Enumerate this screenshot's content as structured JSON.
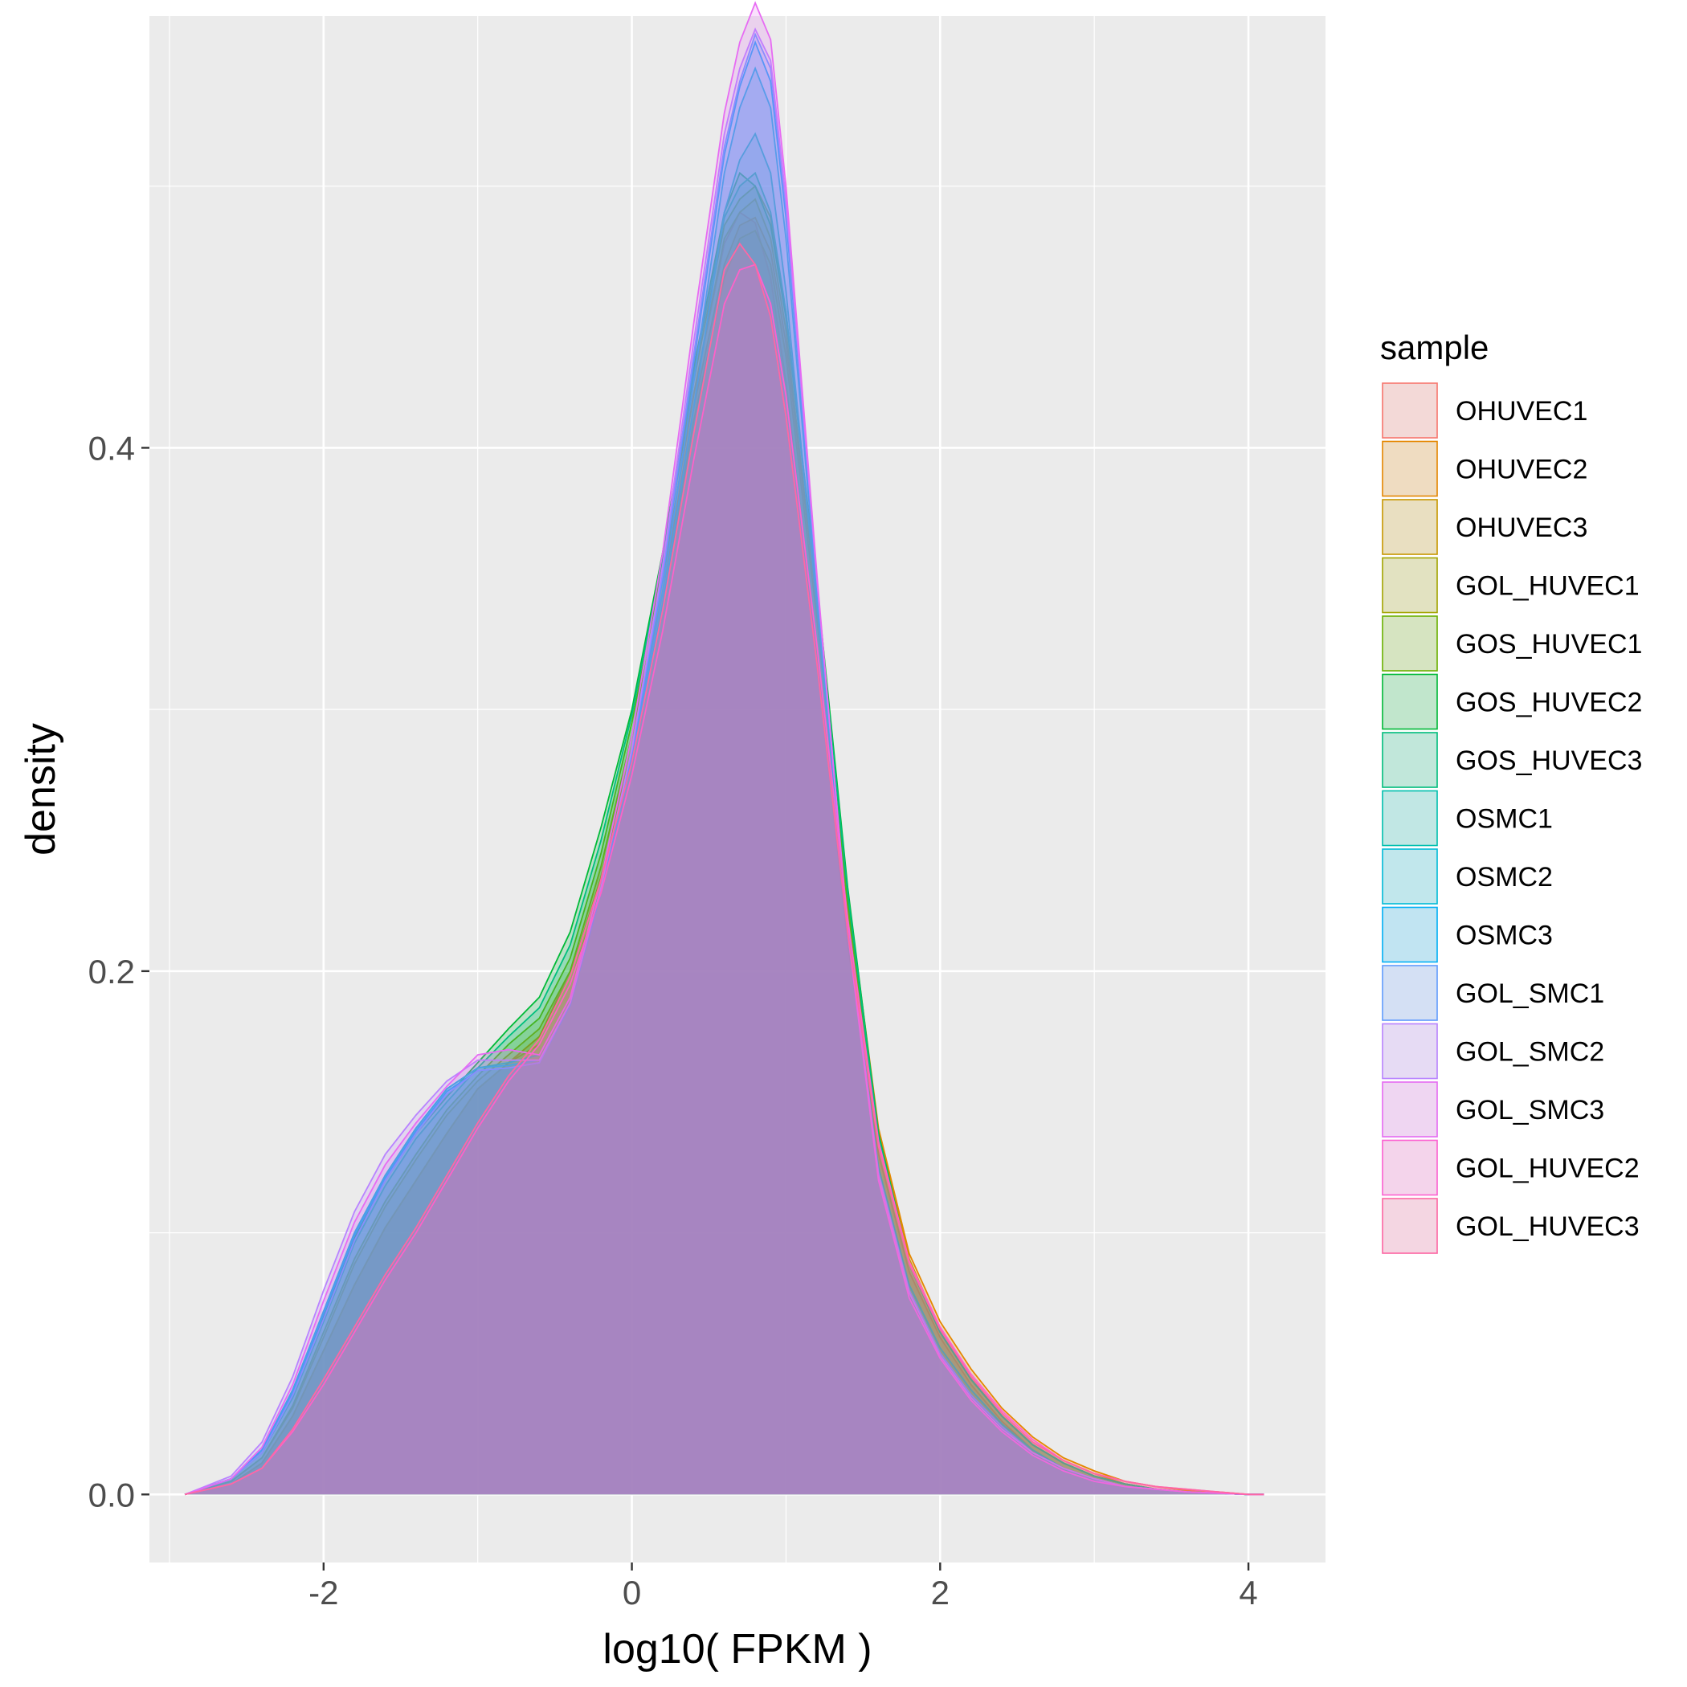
{
  "chart_data": {
    "type": "area",
    "xlabel": "log10( FPKM )",
    "ylabel": "density",
    "xlim": [
      -3.13,
      4.5
    ],
    "ylim": [
      -0.026,
      0.565
    ],
    "x_ticks": [
      -2,
      0,
      2,
      4
    ],
    "x_tick_labels": [
      "-2",
      "0",
      "2",
      "4"
    ],
    "y_ticks": [
      0.0,
      0.2,
      0.4
    ],
    "y_tick_labels": [
      "0.0",
      "0.2",
      "0.4"
    ],
    "grid": true,
    "legend_title": "sample",
    "legend_position": "right",
    "fill_opacity": 0.2,
    "x": [
      -2.9,
      -2.6,
      -2.4,
      -2.2,
      -2.0,
      -1.8,
      -1.6,
      -1.4,
      -1.2,
      -1.0,
      -0.8,
      -0.6,
      -0.4,
      -0.2,
      0.0,
      0.2,
      0.4,
      0.6,
      0.7,
      0.8,
      0.9,
      1.0,
      1.2,
      1.4,
      1.6,
      1.8,
      2.0,
      2.2,
      2.4,
      2.6,
      2.8,
      3.0,
      3.2,
      3.4,
      3.6,
      3.8,
      4.0,
      4.1
    ],
    "series": [
      {
        "name": "OHUVEC1",
        "color": "#F8766D",
        "values": [
          0.0,
          0.004,
          0.012,
          0.03,
          0.055,
          0.08,
          0.102,
          0.12,
          0.138,
          0.155,
          0.165,
          0.175,
          0.2,
          0.24,
          0.29,
          0.35,
          0.42,
          0.478,
          0.49,
          0.486,
          0.465,
          0.425,
          0.32,
          0.21,
          0.13,
          0.085,
          0.06,
          0.042,
          0.028,
          0.017,
          0.01,
          0.006,
          0.003,
          0.002,
          0.001,
          0.0005,
          0.0,
          0.0
        ]
      },
      {
        "name": "OHUVEC2",
        "color": "#E58700",
        "values": [
          0.0,
          0.004,
          0.012,
          0.03,
          0.055,
          0.08,
          0.102,
          0.12,
          0.138,
          0.155,
          0.165,
          0.175,
          0.198,
          0.236,
          0.285,
          0.345,
          0.415,
          0.47,
          0.485,
          0.488,
          0.475,
          0.44,
          0.34,
          0.23,
          0.14,
          0.092,
          0.066,
          0.048,
          0.033,
          0.022,
          0.014,
          0.009,
          0.005,
          0.003,
          0.0015,
          0.001,
          0.0,
          0.0
        ]
      },
      {
        "name": "OHUVEC3",
        "color": "#C99800",
        "values": [
          0.0,
          0.004,
          0.012,
          0.03,
          0.055,
          0.08,
          0.102,
          0.12,
          0.138,
          0.155,
          0.165,
          0.172,
          0.195,
          0.232,
          0.28,
          0.34,
          0.41,
          0.465,
          0.48,
          0.483,
          0.47,
          0.435,
          0.335,
          0.225,
          0.138,
          0.09,
          0.063,
          0.045,
          0.031,
          0.02,
          0.013,
          0.008,
          0.004,
          0.002,
          0.001,
          0.0005,
          0.0,
          0.0
        ]
      },
      {
        "name": "GOL_HUVEC1",
        "color": "#A3A500",
        "values": [
          0.0,
          0.005,
          0.014,
          0.033,
          0.06,
          0.088,
          0.11,
          0.128,
          0.145,
          0.158,
          0.168,
          0.178,
          0.2,
          0.24,
          0.29,
          0.35,
          0.42,
          0.48,
          0.49,
          0.495,
          0.48,
          0.445,
          0.34,
          0.225,
          0.135,
          0.088,
          0.062,
          0.044,
          0.03,
          0.019,
          0.012,
          0.007,
          0.004,
          0.002,
          0.001,
          0.0005,
          0.0,
          0.0
        ]
      },
      {
        "name": "GOS_HUVEC1",
        "color": "#6BB100",
        "values": [
          0.0,
          0.005,
          0.014,
          0.034,
          0.062,
          0.09,
          0.112,
          0.13,
          0.147,
          0.16,
          0.172,
          0.182,
          0.205,
          0.245,
          0.295,
          0.355,
          0.425,
          0.485,
          0.495,
          0.5,
          0.488,
          0.452,
          0.345,
          0.228,
          0.136,
          0.088,
          0.062,
          0.044,
          0.03,
          0.019,
          0.012,
          0.007,
          0.004,
          0.002,
          0.001,
          0.0005,
          0.0,
          0.0
        ]
      },
      {
        "name": "GOS_HUVEC2",
        "color": "#00BA38",
        "values": [
          0.0,
          0.006,
          0.016,
          0.038,
          0.068,
          0.098,
          0.12,
          0.138,
          0.152,
          0.165,
          0.178,
          0.19,
          0.215,
          0.255,
          0.3,
          0.36,
          0.43,
          0.49,
          0.505,
          0.5,
          0.485,
          0.45,
          0.348,
          0.232,
          0.138,
          0.088,
          0.062,
          0.044,
          0.03,
          0.019,
          0.012,
          0.007,
          0.004,
          0.002,
          0.001,
          0.0005,
          0.0,
          0.0
        ]
      },
      {
        "name": "GOS_HUVEC3",
        "color": "#00BF7D",
        "values": [
          0.0,
          0.006,
          0.016,
          0.037,
          0.066,
          0.096,
          0.118,
          0.136,
          0.15,
          0.163,
          0.175,
          0.186,
          0.21,
          0.25,
          0.298,
          0.358,
          0.428,
          0.488,
          0.5,
          0.505,
          0.49,
          0.452,
          0.345,
          0.23,
          0.137,
          0.088,
          0.062,
          0.044,
          0.03,
          0.019,
          0.012,
          0.007,
          0.004,
          0.002,
          0.001,
          0.0005,
          0.0,
          0.0
        ]
      },
      {
        "name": "OSMC1",
        "color": "#00C0AF",
        "values": [
          0.0,
          0.006,
          0.017,
          0.04,
          0.07,
          0.1,
          0.122,
          0.14,
          0.155,
          0.163,
          0.165,
          0.168,
          0.19,
          0.232,
          0.28,
          0.34,
          0.415,
          0.49,
          0.51,
          0.52,
          0.505,
          0.46,
          0.34,
          0.215,
          0.125,
          0.08,
          0.056,
          0.04,
          0.027,
          0.017,
          0.01,
          0.006,
          0.003,
          0.002,
          0.001,
          0.0005,
          0.0,
          0.0
        ]
      },
      {
        "name": "OSMC2",
        "color": "#00BCD8",
        "values": [
          0.0,
          0.006,
          0.017,
          0.04,
          0.07,
          0.1,
          0.122,
          0.14,
          0.155,
          0.163,
          0.164,
          0.166,
          0.188,
          0.23,
          0.28,
          0.345,
          0.425,
          0.505,
          0.53,
          0.545,
          0.53,
          0.48,
          0.345,
          0.215,
          0.123,
          0.078,
          0.054,
          0.038,
          0.026,
          0.016,
          0.01,
          0.006,
          0.003,
          0.002,
          0.001,
          0.0005,
          0.0,
          0.0
        ]
      },
      {
        "name": "OSMC3",
        "color": "#00B0F6",
        "values": [
          0.0,
          0.006,
          0.017,
          0.039,
          0.069,
          0.099,
          0.121,
          0.139,
          0.154,
          0.162,
          0.163,
          0.165,
          0.187,
          0.23,
          0.282,
          0.35,
          0.432,
          0.512,
          0.538,
          0.555,
          0.54,
          0.488,
          0.348,
          0.216,
          0.123,
          0.078,
          0.054,
          0.038,
          0.026,
          0.016,
          0.01,
          0.006,
          0.003,
          0.002,
          0.001,
          0.0005,
          0.0,
          0.0
        ]
      },
      {
        "name": "GOL_SMC1",
        "color": "#619CFF",
        "values": [
          0.0,
          0.006,
          0.016,
          0.038,
          0.067,
          0.097,
          0.12,
          0.138,
          0.153,
          0.162,
          0.163,
          0.165,
          0.188,
          0.232,
          0.284,
          0.352,
          0.435,
          0.515,
          0.54,
          0.558,
          0.545,
          0.492,
          0.35,
          0.217,
          0.123,
          0.078,
          0.054,
          0.038,
          0.026,
          0.016,
          0.01,
          0.006,
          0.003,
          0.002,
          0.001,
          0.0005,
          0.0,
          0.0
        ]
      },
      {
        "name": "GOL_SMC2",
        "color": "#B983FF",
        "values": [
          0.0,
          0.007,
          0.02,
          0.045,
          0.078,
          0.108,
          0.13,
          0.145,
          0.158,
          0.166,
          0.166,
          0.166,
          0.188,
          0.232,
          0.285,
          0.355,
          0.44,
          0.52,
          0.545,
          0.56,
          0.548,
          0.495,
          0.35,
          0.216,
          0.122,
          0.077,
          0.053,
          0.037,
          0.025,
          0.016,
          0.01,
          0.006,
          0.003,
          0.002,
          0.001,
          0.0005,
          0.0,
          0.0
        ]
      },
      {
        "name": "GOL_SMC3",
        "color": "#E76BF3",
        "values": [
          0.0,
          0.006,
          0.018,
          0.042,
          0.074,
          0.104,
          0.126,
          0.142,
          0.156,
          0.168,
          0.17,
          0.168,
          0.19,
          0.235,
          0.29,
          0.36,
          0.447,
          0.528,
          0.555,
          0.57,
          0.556,
          0.5,
          0.352,
          0.215,
          0.12,
          0.075,
          0.052,
          0.036,
          0.024,
          0.015,
          0.009,
          0.005,
          0.003,
          0.002,
          0.001,
          0.0005,
          0.0,
          0.0
        ]
      },
      {
        "name": "GOL_HUVEC2",
        "color": "#FD61D1",
        "values": [
          0.0,
          0.004,
          0.01,
          0.024,
          0.042,
          0.062,
          0.082,
          0.1,
          0.12,
          0.14,
          0.158,
          0.172,
          0.195,
          0.23,
          0.275,
          0.33,
          0.395,
          0.455,
          0.468,
          0.47,
          0.455,
          0.42,
          0.325,
          0.22,
          0.135,
          0.089,
          0.064,
          0.046,
          0.032,
          0.021,
          0.013,
          0.008,
          0.005,
          0.003,
          0.002,
          0.001,
          0.0,
          0.0
        ]
      },
      {
        "name": "GOL_HUVEC3",
        "color": "#FF67A4",
        "values": [
          0.0,
          0.004,
          0.01,
          0.025,
          0.044,
          0.064,
          0.084,
          0.102,
          0.122,
          0.142,
          0.16,
          0.174,
          0.198,
          0.235,
          0.28,
          0.338,
          0.405,
          0.468,
          0.478,
          0.47,
          0.45,
          0.412,
          0.318,
          0.215,
          0.133,
          0.088,
          0.063,
          0.045,
          0.031,
          0.02,
          0.013,
          0.008,
          0.005,
          0.003,
          0.002,
          0.001,
          0.0,
          0.0
        ]
      }
    ]
  }
}
